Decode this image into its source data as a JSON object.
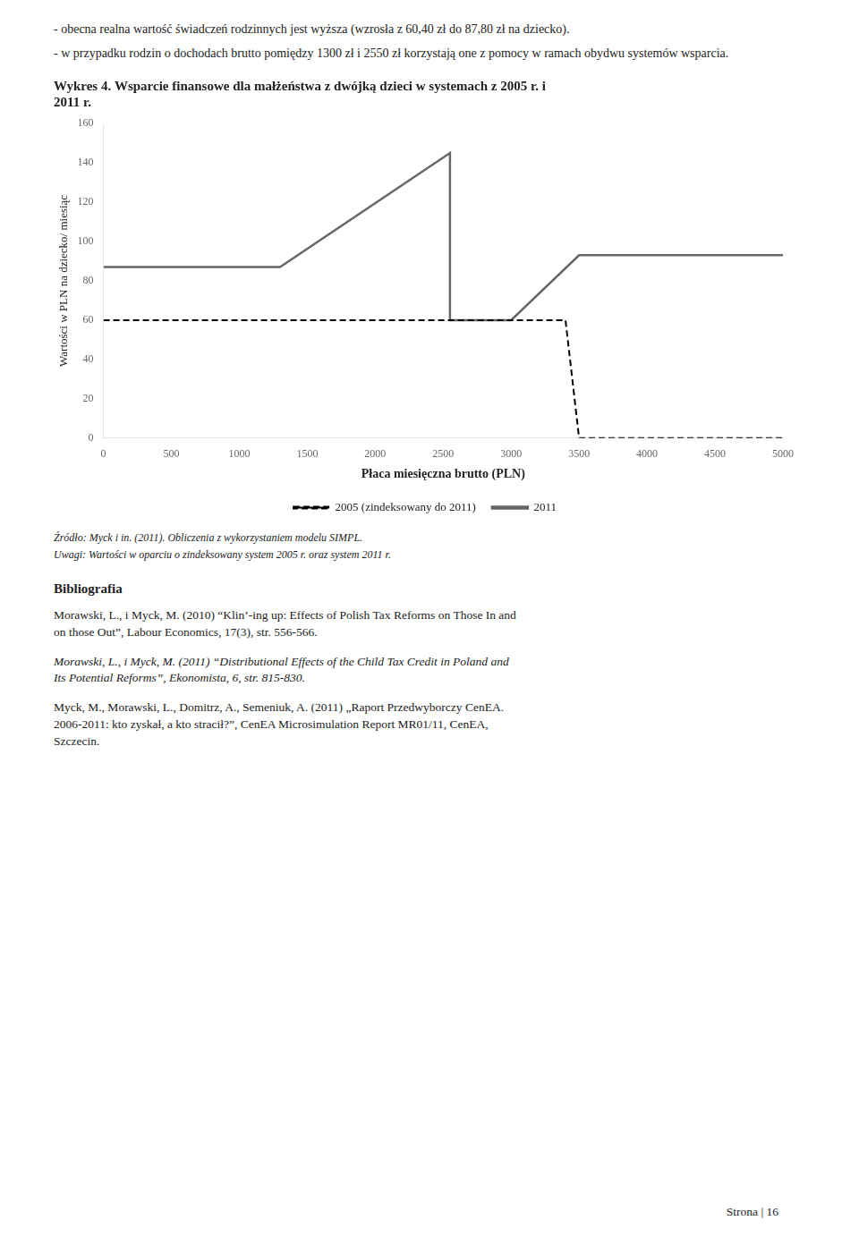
{
  "chart_data": {
    "type": "line",
    "title": [
      "Wykres 4. Wsparcie finansowe dla małżeństwa z dwójką dzieci w systemach z 2005 r. i",
      "2011 r."
    ],
    "x_label": "Płaca miesięczna brutto (PLN)",
    "y_label": "Wartości w PLN na dziecko/ miesiąc",
    "xlim": [
      0,
      5000
    ],
    "ylim": [
      0,
      160
    ],
    "xticks": [
      0,
      500,
      1000,
      1500,
      2000,
      2500,
      3000,
      3500,
      4000,
      4500,
      5000
    ],
    "yticks": [
      0,
      20,
      40,
      60,
      80,
      100,
      120,
      140,
      160
    ],
    "grid": false,
    "legend": "bottom",
    "series": [
      {
        "name": "2005 (zindeksowany do 2011)",
        "color": "#000000",
        "line_style": "dashed",
        "x": [
          0,
          3400,
          3400,
          3500,
          5000
        ],
        "values": [
          60,
          60,
          60,
          0,
          0
        ]
      },
      {
        "name": "2011",
        "color": "#666666",
        "line_style": "solid",
        "x": [
          0,
          1300,
          1300,
          2550,
          2550,
          3000,
          3500,
          3500,
          5000
        ],
        "values": [
          87,
          87,
          87,
          145,
          60,
          60,
          93,
          93,
          93
        ]
      }
    ],
    "annotations": [
      "- obecna realna wartość świadczeń rodzinnych jest wyższa (wzrosła z 60,40 zł do 87,80 zł na dziecko).",
      "- w przypadku rodzin o dochodach brutto pomiędzy 1300 zł i 2550 zł korzystają one z pomocy w ramach obydwu systemów wsparcia.",
      "Źródło: Myck i in. (2011). Obliczenia z wykorzystaniem modelu SIMPL.",
      "Uwagi: Wartości w oparciu o zindeksowany system 2005 r. oraz system 2011 r.",
      "Bibliografia",
      "Morawski, L., i Myck, M. (2010) “Klin’-ing up: Effects of Polish Tax Reforms on Those In and\non those Out”, Labour Economics, 17(3), str. 556-566.",
      "Morawski, L., i Myck, M. (2011) “Distributional Effects of the Child Tax Credit in Poland and\nIts Potential Reforms”, Ekonomista, 6, str. 815-830.",
      "Myck, M., Morawski, L., Domitrz, A., Semeniuk, A. (2011) „Raport Przedwyborczy CenEA.\n2006-2011: kto zyskał, a kto stracił?”, CenEA Microsimulation Report MR01/11, CenEA,\nSzczecin.",
      "Strona | 16"
    ]
  }
}
